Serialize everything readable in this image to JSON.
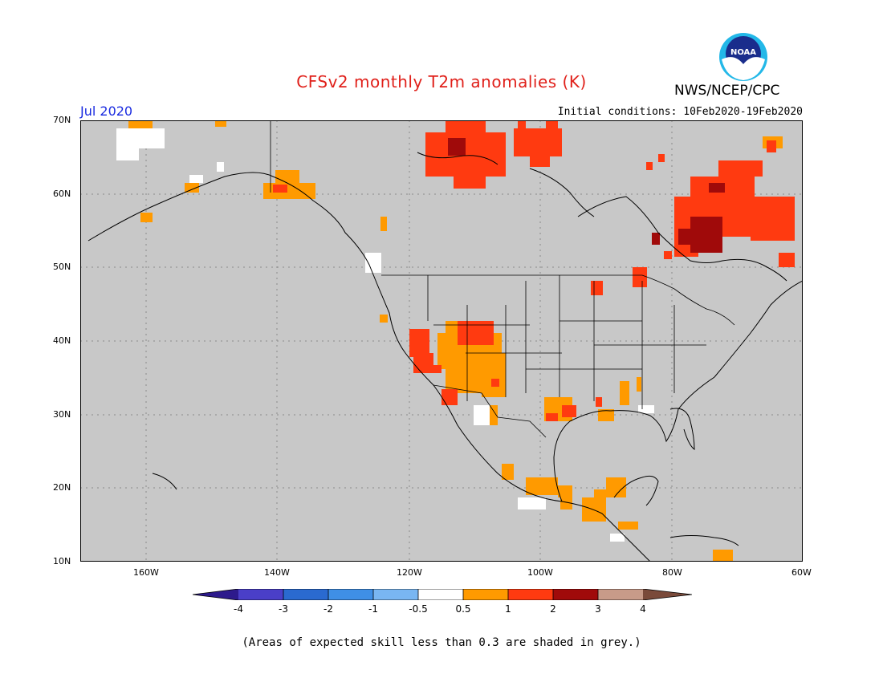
{
  "header": {
    "title": "CFSv2 monthly T2m anomalies (K)",
    "agency": "NWS/NCEP/CPC",
    "logo_text": "NOAA",
    "month": "Jul 2020",
    "initial_conditions": "Initial conditions: 10Feb2020-19Feb2020"
  },
  "axes": {
    "lat_labels": [
      "70N",
      "60N",
      "50N",
      "40N",
      "30N",
      "20N",
      "10N"
    ],
    "lon_labels": [
      "160W",
      "140W",
      "120W",
      "100W",
      "80W",
      "60W"
    ]
  },
  "colorbar": {
    "ticks": [
      "-4",
      "-3",
      "-2",
      "-1",
      "-0.5",
      "0.5",
      "1",
      "2",
      "3",
      "4"
    ],
    "colors": [
      "#2d1a8c",
      "#4a3fc8",
      "#2a6ad0",
      "#3f8fe6",
      "#79b6f2",
      "#ffffff",
      "#ff9a00",
      "#ff3a10",
      "#a00a0a",
      "#c89b89",
      "#7a4a3a"
    ]
  },
  "map_colors": {
    "background": "#c8c8c8",
    "anom_05_1": "#ff9a00",
    "anom_1_2": "#ff3a10",
    "anom_2_3": "#a00a0a",
    "near_zero": "#ffffff"
  },
  "footnote": "(Areas of expected skill less than 0.3 are shaded in grey.)"
}
